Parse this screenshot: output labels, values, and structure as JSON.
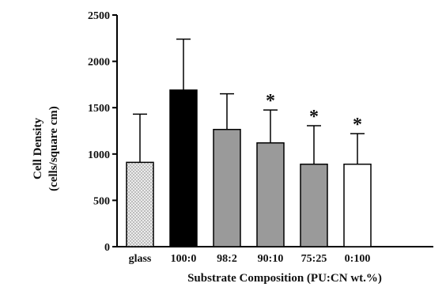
{
  "chart_data": {
    "type": "bar",
    "title": "",
    "xlabel": "Substrate Composition (PU:CN wt.%)",
    "ylabel_lines": [
      "Cell Density",
      "(cells/square cm)"
    ],
    "ylim": [
      0,
      2500
    ],
    "yticks": [
      0,
      500,
      1000,
      1500,
      2000,
      2500
    ],
    "categories": [
      "glass",
      "100:0",
      "98:2",
      "90:10",
      "75:25",
      "0:100"
    ],
    "values": [
      910,
      1690,
      1265,
      1120,
      890,
      890
    ],
    "error_upper": [
      1430,
      2240,
      1650,
      1475,
      1305,
      1220
    ],
    "significance_marks": [
      "",
      "",
      "",
      "*",
      "*",
      "*"
    ],
    "bar_fills": [
      "#e2e2e2",
      "#000000",
      "#9a9a9a",
      "#9a9a9a",
      "#9a9a9a",
      "#ffffff"
    ],
    "bar_patterns": [
      "dotted",
      "solid",
      "solid",
      "solid",
      "solid",
      "solid"
    ],
    "grid": false,
    "legend": "none"
  }
}
